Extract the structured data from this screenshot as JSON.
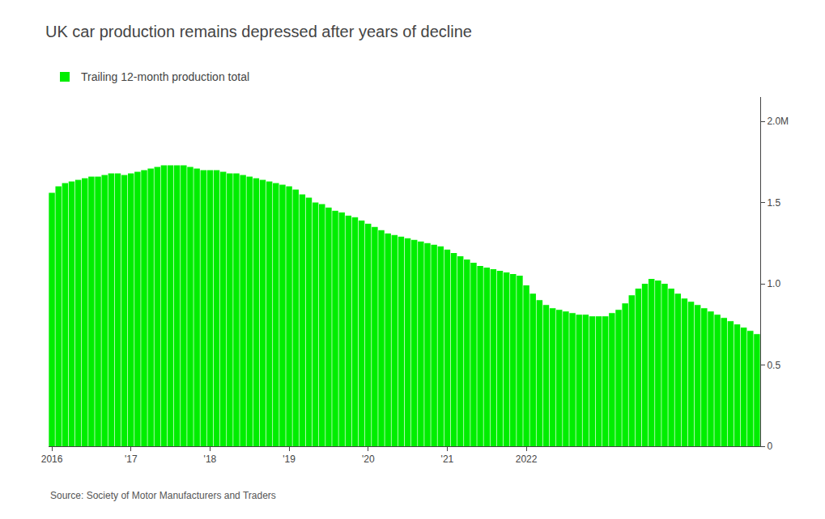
{
  "chart_data": {
    "type": "bar",
    "title": "UK car production remains depressed after years of decline",
    "annotations": [
      "Source: Society of Motor Manufacturers and Traders"
    ],
    "categories": [
      "2016",
      null,
      null,
      null,
      null,
      null,
      null,
      null,
      null,
      null,
      null,
      null,
      "'17",
      null,
      null,
      null,
      null,
      null,
      null,
      null,
      null,
      null,
      null,
      null,
      "'18",
      null,
      null,
      null,
      null,
      null,
      null,
      null,
      null,
      null,
      null,
      null,
      "'19",
      null,
      null,
      null,
      null,
      null,
      null,
      null,
      null,
      null,
      null,
      null,
      "'20",
      null,
      null,
      null,
      null,
      null,
      null,
      null,
      null,
      null,
      null,
      null,
      "'21",
      null,
      null,
      null,
      null,
      null,
      null,
      null,
      null,
      null,
      null,
      null,
      "2022",
      null,
      null,
      null,
      null,
      null,
      null,
      null,
      null,
      null,
      null,
      null,
      null,
      null,
      null,
      null,
      null,
      null,
      null,
      null,
      null,
      null,
      null,
      null,
      null,
      null,
      null,
      null,
      null,
      null,
      null,
      null,
      null,
      null,
      null,
      null
    ],
    "series": [
      {
        "name": "Trailing 12-month production total",
        "color": "#00EE00",
        "values": [
          1.56,
          1.6,
          1.62,
          1.63,
          1.64,
          1.65,
          1.66,
          1.66,
          1.67,
          1.68,
          1.68,
          1.67,
          1.68,
          1.69,
          1.7,
          1.71,
          1.72,
          1.73,
          1.73,
          1.73,
          1.73,
          1.72,
          1.71,
          1.7,
          1.7,
          1.7,
          1.69,
          1.68,
          1.68,
          1.67,
          1.66,
          1.65,
          1.64,
          1.63,
          1.62,
          1.61,
          1.6,
          1.58,
          1.55,
          1.53,
          1.5,
          1.49,
          1.47,
          1.45,
          1.44,
          1.42,
          1.41,
          1.39,
          1.37,
          1.35,
          1.33,
          1.31,
          1.3,
          1.29,
          1.28,
          1.27,
          1.26,
          1.25,
          1.24,
          1.23,
          1.21,
          1.19,
          1.17,
          1.15,
          1.13,
          1.11,
          1.1,
          1.09,
          1.08,
          1.07,
          1.06,
          1.05,
          0.99,
          0.94,
          0.9,
          0.87,
          0.85,
          0.84,
          0.83,
          0.82,
          0.81,
          0.81,
          0.8,
          0.8,
          0.8,
          0.82,
          0.84,
          0.88,
          0.93,
          0.97,
          1.0,
          1.03,
          1.02,
          1.0,
          0.97,
          0.94,
          0.91,
          0.89,
          0.87,
          0.85,
          0.83,
          0.81,
          0.79,
          0.77,
          0.75,
          0.73,
          0.71,
          0.69
        ]
      }
    ],
    "ylim": [
      0,
      2.15
    ],
    "yticks": [
      0,
      0.5,
      {
        "value": 1.0,
        "label": "1.0"
      },
      1.5,
      {
        "value": 2.0,
        "label": "2.0M"
      }
    ],
    "grid": false,
    "legend": "top left"
  }
}
